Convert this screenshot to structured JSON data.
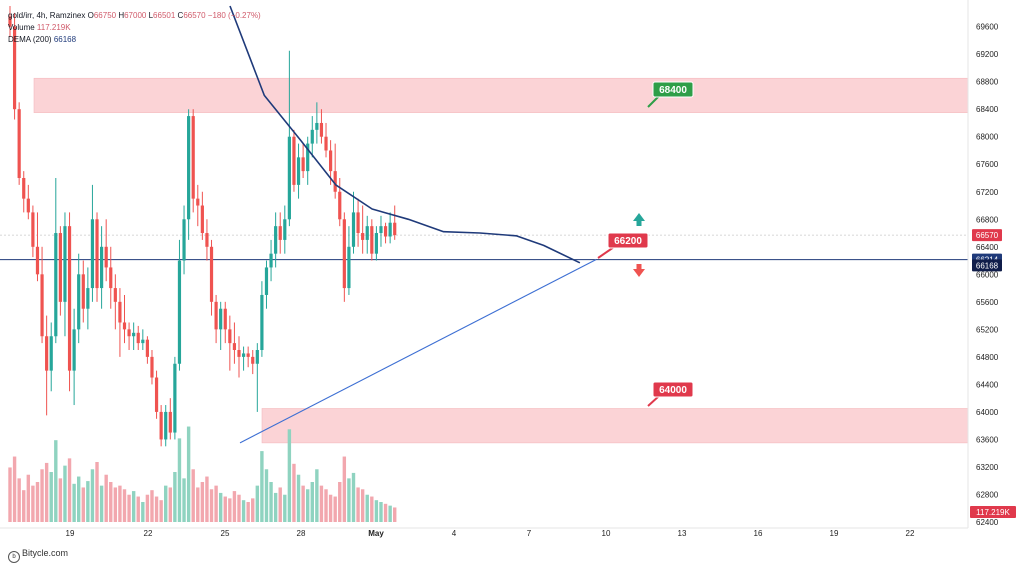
{
  "legend": {
    "symbol_line": "gold/irr, 4h, Ramzinex",
    "o_label": "O",
    "o_value": "66750",
    "h_label": "H",
    "h_value": "67000",
    "l_label": "L",
    "l_value": "66501",
    "c_label": "C",
    "c_value": "66570",
    "change": "−180 (−0.27%)",
    "volume_label": "Volume",
    "volume_value": "117.219K",
    "dema_label": "DEMA (200)",
    "dema_value": "66168"
  },
  "brand": "Bitycle.com",
  "colors": {
    "up": "#26a69a",
    "down": "#ef5350",
    "up_volume": "#8fd3c0",
    "down_volume": "#f2a7ae",
    "zone": "#fbd3d6",
    "dema": "#1f3a7a",
    "trendline": "#3d6fd3",
    "price_tag": "#e0394c",
    "level_tag": "#1f3a7a",
    "green_callout": "#2e9e48",
    "red_callout": "#e0394c"
  },
  "annotations": {
    "resistance_label": "68400",
    "pivot_label": "66200",
    "support_label": "64000"
  },
  "chart_data": {
    "type": "candlestick",
    "symbol": "gold/irr",
    "timeframe": "4h",
    "y_ticks": [
      "69600",
      "69200",
      "68800",
      "68400",
      "68000",
      "67600",
      "67200",
      "66800",
      "66400",
      "66000",
      "65600",
      "65200",
      "64800",
      "64400",
      "64000",
      "63600",
      "63200",
      "62800",
      "62400"
    ],
    "x_ticks": [
      "19",
      "22",
      "25",
      "28",
      "May",
      "4",
      "7",
      "10",
      "13",
      "16",
      "19",
      "22"
    ],
    "ylim": [
      62400,
      69900
    ],
    "last_price": "66570",
    "level_price": "66214",
    "dema_value": "66168",
    "volume_badge": "117.219K",
    "zones": [
      {
        "label": "68400",
        "from": 68350,
        "to": 68850
      },
      {
        "label": "64000",
        "from": 63550,
        "to": 64050
      }
    ],
    "horizontal_line": 66214,
    "trendline": [
      {
        "x": "Apr 25",
        "y": 63550
      },
      {
        "x": "May 9",
        "y": 66214
      }
    ],
    "candles": [
      {
        "o": 69750,
        "h": 69900,
        "l": 69450,
        "c": 69600
      },
      {
        "o": 69600,
        "h": 69800,
        "l": 68250,
        "c": 68400
      },
      {
        "o": 68400,
        "h": 68500,
        "l": 67300,
        "c": 67400
      },
      {
        "o": 67400,
        "h": 67500,
        "l": 66900,
        "c": 67100
      },
      {
        "o": 67100,
        "h": 67300,
        "l": 66800,
        "c": 66900
      },
      {
        "o": 66900,
        "h": 67000,
        "l": 66250,
        "c": 66400
      },
      {
        "o": 66400,
        "h": 66900,
        "l": 65900,
        "c": 66000
      },
      {
        "o": 66000,
        "h": 66400,
        "l": 65000,
        "c": 65100
      },
      {
        "o": 65100,
        "h": 65400,
        "l": 63950,
        "c": 64600
      },
      {
        "o": 64600,
        "h": 65300,
        "l": 64300,
        "c": 65100
      },
      {
        "o": 65100,
        "h": 67400,
        "l": 65000,
        "c": 66600
      },
      {
        "o": 66600,
        "h": 66700,
        "l": 65400,
        "c": 65600
      },
      {
        "o": 65600,
        "h": 66900,
        "l": 65100,
        "c": 66700
      },
      {
        "o": 66700,
        "h": 66900,
        "l": 64300,
        "c": 64600
      },
      {
        "o": 64600,
        "h": 65500,
        "l": 64100,
        "c": 65200
      },
      {
        "o": 65200,
        "h": 66300,
        "l": 65000,
        "c": 66000
      },
      {
        "o": 66000,
        "h": 66200,
        "l": 65300,
        "c": 65500
      },
      {
        "o": 65500,
        "h": 66100,
        "l": 65200,
        "c": 65800
      },
      {
        "o": 65800,
        "h": 67300,
        "l": 65600,
        "c": 66800
      },
      {
        "o": 66800,
        "h": 66900,
        "l": 65600,
        "c": 65800
      },
      {
        "o": 65800,
        "h": 66700,
        "l": 65500,
        "c": 66400
      },
      {
        "o": 66400,
        "h": 66800,
        "l": 65900,
        "c": 66100
      },
      {
        "o": 66100,
        "h": 66400,
        "l": 65500,
        "c": 65800
      },
      {
        "o": 65800,
        "h": 66000,
        "l": 65200,
        "c": 65600
      },
      {
        "o": 65600,
        "h": 65800,
        "l": 64800,
        "c": 65300
      },
      {
        "o": 65300,
        "h": 65700,
        "l": 65000,
        "c": 65200
      },
      {
        "o": 65200,
        "h": 65300,
        "l": 64900,
        "c": 65100
      },
      {
        "o": 65100,
        "h": 65300,
        "l": 64900,
        "c": 65150
      },
      {
        "o": 65150,
        "h": 65250,
        "l": 64900,
        "c": 65000
      },
      {
        "o": 65000,
        "h": 65200,
        "l": 64900,
        "c": 65050
      },
      {
        "o": 65050,
        "h": 65100,
        "l": 64700,
        "c": 64800
      },
      {
        "o": 64800,
        "h": 64900,
        "l": 64400,
        "c": 64500
      },
      {
        "o": 64500,
        "h": 64600,
        "l": 63900,
        "c": 64000
      },
      {
        "o": 64000,
        "h": 64100,
        "l": 63500,
        "c": 63600
      },
      {
        "o": 63600,
        "h": 64100,
        "l": 63500,
        "c": 64000
      },
      {
        "o": 64000,
        "h": 64200,
        "l": 63600,
        "c": 63700
      },
      {
        "o": 63700,
        "h": 64800,
        "l": 63600,
        "c": 64700
      },
      {
        "o": 64700,
        "h": 66500,
        "l": 64600,
        "c": 66200
      },
      {
        "o": 66200,
        "h": 67000,
        "l": 66000,
        "c": 66800
      },
      {
        "o": 66800,
        "h": 68400,
        "l": 66500,
        "c": 68300
      },
      {
        "o": 68300,
        "h": 68400,
        "l": 66900,
        "c": 67100
      },
      {
        "o": 67100,
        "h": 67300,
        "l": 66700,
        "c": 67000
      },
      {
        "o": 67000,
        "h": 67200,
        "l": 66500,
        "c": 66600
      },
      {
        "o": 66600,
        "h": 66800,
        "l": 66200,
        "c": 66400
      },
      {
        "o": 66400,
        "h": 66500,
        "l": 65400,
        "c": 65600
      },
      {
        "o": 65600,
        "h": 65700,
        "l": 65000,
        "c": 65200
      },
      {
        "o": 65200,
        "h": 65600,
        "l": 64900,
        "c": 65500
      },
      {
        "o": 65500,
        "h": 65600,
        "l": 65000,
        "c": 65200
      },
      {
        "o": 65200,
        "h": 65400,
        "l": 64600,
        "c": 65000
      },
      {
        "o": 65000,
        "h": 65300,
        "l": 64700,
        "c": 64900
      },
      {
        "o": 64900,
        "h": 65100,
        "l": 64500,
        "c": 64800
      },
      {
        "o": 64800,
        "h": 64950,
        "l": 64600,
        "c": 64850
      },
      {
        "o": 64850,
        "h": 64950,
        "l": 64650,
        "c": 64800
      },
      {
        "o": 64800,
        "h": 64900,
        "l": 64550,
        "c": 64700
      },
      {
        "o": 64700,
        "h": 65000,
        "l": 64000,
        "c": 64900
      },
      {
        "o": 64900,
        "h": 65900,
        "l": 64800,
        "c": 65700
      },
      {
        "o": 65700,
        "h": 66200,
        "l": 65500,
        "c": 66100
      },
      {
        "o": 66100,
        "h": 66500,
        "l": 65900,
        "c": 66300
      },
      {
        "o": 66300,
        "h": 66900,
        "l": 66100,
        "c": 66700
      },
      {
        "o": 66700,
        "h": 66900,
        "l": 66300,
        "c": 66500
      },
      {
        "o": 66500,
        "h": 67000,
        "l": 66300,
        "c": 66800
      },
      {
        "o": 66800,
        "h": 69250,
        "l": 66700,
        "c": 68000
      },
      {
        "o": 68000,
        "h": 68100,
        "l": 67200,
        "c": 67300
      },
      {
        "o": 67300,
        "h": 67900,
        "l": 67100,
        "c": 67700
      },
      {
        "o": 67700,
        "h": 67900,
        "l": 67400,
        "c": 67500
      },
      {
        "o": 67500,
        "h": 68000,
        "l": 67300,
        "c": 67900
      },
      {
        "o": 67900,
        "h": 68300,
        "l": 67700,
        "c": 68100
      },
      {
        "o": 68100,
        "h": 68500,
        "l": 67900,
        "c": 68200
      },
      {
        "o": 68200,
        "h": 68400,
        "l": 67900,
        "c": 68000
      },
      {
        "o": 68000,
        "h": 68200,
        "l": 67700,
        "c": 67800
      },
      {
        "o": 67800,
        "h": 67950,
        "l": 67300,
        "c": 67500
      },
      {
        "o": 67500,
        "h": 67900,
        "l": 67100,
        "c": 67200
      },
      {
        "o": 67200,
        "h": 67400,
        "l": 66700,
        "c": 66800
      },
      {
        "o": 66800,
        "h": 66900,
        "l": 65600,
        "c": 65800
      },
      {
        "o": 65800,
        "h": 66700,
        "l": 65700,
        "c": 66400
      },
      {
        "o": 66400,
        "h": 67200,
        "l": 66300,
        "c": 66900
      },
      {
        "o": 66900,
        "h": 67100,
        "l": 66400,
        "c": 66600
      },
      {
        "o": 66600,
        "h": 67000,
        "l": 66300,
        "c": 66500
      },
      {
        "o": 66500,
        "h": 66850,
        "l": 66300,
        "c": 66700
      },
      {
        "o": 66700,
        "h": 66800,
        "l": 66200,
        "c": 66300
      },
      {
        "o": 66300,
        "h": 66700,
        "l": 66200,
        "c": 66600
      },
      {
        "o": 66600,
        "h": 66850,
        "l": 66400,
        "c": 66700
      },
      {
        "o": 66700,
        "h": 66750,
        "l": 66450,
        "c": 66550
      },
      {
        "o": 66550,
        "h": 66900,
        "l": 66450,
        "c": 66750
      },
      {
        "o": 66750,
        "h": 67000,
        "l": 66501,
        "c": 66570
      }
    ],
    "volume": [
      60,
      72,
      48,
      35,
      52,
      40,
      44,
      58,
      65,
      55,
      90,
      48,
      62,
      70,
      42,
      50,
      38,
      45,
      58,
      66,
      40,
      52,
      44,
      38,
      40,
      36,
      30,
      34,
      28,
      22,
      30,
      35,
      28,
      24,
      40,
      38,
      55,
      92,
      48,
      105,
      58,
      38,
      44,
      50,
      36,
      40,
      32,
      28,
      26,
      34,
      30,
      24,
      22,
      26,
      40,
      78,
      58,
      44,
      32,
      38,
      30,
      102,
      64,
      52,
      40,
      36,
      44,
      58,
      40,
      36,
      30,
      28,
      44,
      72,
      48,
      54,
      38,
      36,
      30,
      28,
      24,
      22,
      20,
      18,
      16
    ],
    "dema": [
      {
        "x": "i6",
        "y": 69900
      },
      {
        "x": "i14",
        "y": 68600
      },
      {
        "x": "i22",
        "y": 67950
      },
      {
        "x": "i30",
        "y": 67300
      },
      {
        "x": "i38",
        "y": 66950
      },
      {
        "x": "i46",
        "y": 66800
      },
      {
        "x": "i54",
        "y": 66620
      },
      {
        "x": "i62",
        "y": 66600
      },
      {
        "x": "i70",
        "y": 66560
      },
      {
        "x": "i76",
        "y": 66420
      },
      {
        "x": "i84",
        "y": 66168
      }
    ]
  }
}
